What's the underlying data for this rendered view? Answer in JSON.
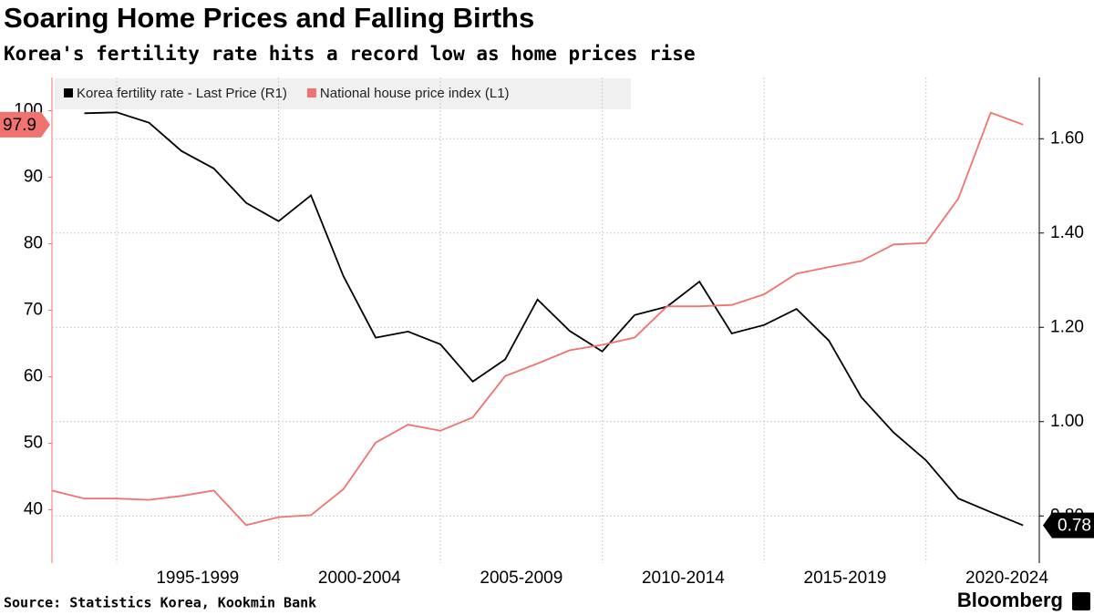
{
  "chart_data": {
    "type": "line",
    "title": "Soaring Home Prices and Falling Births",
    "subtitle": "Korea's fertility rate hits a record low as home prices rise",
    "source": "Source: Statistics Korea, Kookmin Bank",
    "brand": "Bloomberg",
    "x": [
      1993,
      1994,
      1995,
      1996,
      1997,
      1998,
      1999,
      2000,
      2001,
      2002,
      2003,
      2004,
      2005,
      2006,
      2007,
      2008,
      2009,
      2010,
      2011,
      2012,
      2013,
      2014,
      2015,
      2016,
      2017,
      2018,
      2019,
      2020,
      2021,
      2022,
      2023
    ],
    "xlim": [
      1993,
      2023.5
    ],
    "xticks": [
      {
        "value": 1995,
        "label": "1995-1999"
      },
      {
        "value": 2000,
        "label": "2000-2004"
      },
      {
        "value": 2005,
        "label": "2005-2009"
      },
      {
        "value": 2010,
        "label": "2010-2014"
      },
      {
        "value": 2015,
        "label": "2015-2019"
      },
      {
        "value": 2020,
        "label": "2020-2024"
      }
    ],
    "ylim": [
      32,
      105
    ],
    "yticks": [
      40,
      50,
      60,
      70,
      80,
      90,
      100
    ],
    "y2lim": [
      0.7,
      1.73
    ],
    "y2ticks": [
      {
        "value": 0.8,
        "label": "0.80"
      },
      {
        "value": 1.0,
        "label": "1.00"
      },
      {
        "value": 1.2,
        "label": "1.20"
      },
      {
        "value": 1.4,
        "label": "1.40"
      },
      {
        "value": 1.6,
        "label": "1.60"
      }
    ],
    "grid": true,
    "series": [
      {
        "name": "Korea fertility rate - Last Price (R1)",
        "color": "#000000",
        "axis": "y2",
        "values": [
          null,
          1.654,
          1.656,
          1.634,
          1.574,
          1.537,
          1.464,
          1.425,
          1.48,
          1.309,
          1.178,
          1.191,
          1.164,
          1.085,
          1.132,
          1.259,
          1.192,
          1.149,
          1.226,
          1.244,
          1.297,
          1.187,
          1.205,
          1.239,
          1.172,
          1.052,
          0.977,
          0.918,
          0.837,
          0.808,
          0.78
        ]
      },
      {
        "name": "National house price index (L1)",
        "color": "#f07370",
        "axis": "y",
        "values": [
          42.9,
          41.7,
          41.7,
          41.5,
          42.1,
          42.9,
          37.7,
          38.9,
          39.2,
          43.1,
          50.1,
          52.8,
          51.9,
          53.9,
          60.1,
          62.0,
          64.0,
          64.8,
          65.9,
          70.6,
          70.6,
          70.8,
          72.4,
          75.5,
          76.5,
          77.4,
          79.9,
          80.1,
          86.8,
          99.7,
          97.9
        ]
      }
    ]
  }
}
